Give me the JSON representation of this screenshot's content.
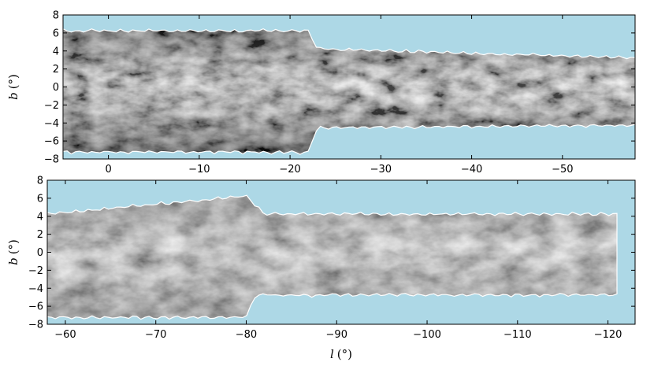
{
  "chart_data": [
    {
      "type": "heatmap",
      "panel": "top",
      "description_of_content": "grayscale sky survey mosaic of Galactic plane with hexagonal-tiled footprint edges",
      "background_color": "#add8e6",
      "colormap": "gray",
      "xlabel": "",
      "ylabel": "b (°)",
      "ylabel_var": "b",
      "ylabel_unit": "(°)",
      "xlim": [
        5,
        -58
      ],
      "ylim": [
        -8,
        8
      ],
      "xticks": [
        0,
        -10,
        -20,
        -30,
        -40,
        -50
      ],
      "xtick_labels": [
        "0",
        "−10",
        "−20",
        "−30",
        "−40",
        "−50"
      ],
      "yticks": [
        8,
        6,
        4,
        2,
        0,
        -2,
        -4,
        -6,
        -8
      ],
      "ytick_labels": [
        "8",
        "6",
        "4",
        "2",
        "0",
        "−2",
        "−4",
        "−6",
        "−8"
      ],
      "coverage": {
        "l_min": -58,
        "l_max": 5,
        "upper_b_segments": [
          [
            5,
            6.5
          ],
          [
            -22,
            6.5
          ],
          [
            -23,
            4.5
          ],
          [
            -58,
            3.5
          ]
        ],
        "lower_b_segments": [
          [
            5,
            -7.5
          ],
          [
            -22,
            -7.5
          ],
          [
            -23,
            -4.8
          ],
          [
            -58,
            -4.5
          ]
        ]
      },
      "grid": false
    },
    {
      "type": "heatmap",
      "panel": "bottom",
      "description_of_content": "grayscale sky survey mosaic of Galactic plane with hexagonal-tiled footprint edges",
      "background_color": "#add8e6",
      "colormap": "gray",
      "xlabel": "l (°)",
      "xlabel_var": "l",
      "xlabel_unit": "(°)",
      "ylabel": "b (°)",
      "ylabel_var": "b",
      "ylabel_unit": "(°)",
      "xlim": [
        -58,
        -123
      ],
      "ylim": [
        -8,
        8
      ],
      "xticks": [
        -60,
        -70,
        -80,
        -90,
        -100,
        -110,
        -120
      ],
      "xtick_labels": [
        "−60",
        "−70",
        "−80",
        "−90",
        "−100",
        "−110",
        "−120"
      ],
      "yticks": [
        8,
        6,
        4,
        2,
        0,
        -2,
        -4,
        -6,
        -8
      ],
      "ytick_labels": [
        "8",
        "6",
        "4",
        "2",
        "0",
        "−2",
        "−4",
        "−6",
        "−8"
      ],
      "coverage": {
        "l_min": -121,
        "l_max": -58,
        "upper_b_segments": [
          [
            -58,
            4.5
          ],
          [
            -80,
            6.5
          ],
          [
            -82,
            4.5
          ],
          [
            -121,
            4.5
          ]
        ],
        "lower_b_segments": [
          [
            -58,
            -7.5
          ],
          [
            -80,
            -7.5
          ],
          [
            -81,
            -5
          ],
          [
            -121,
            -5
          ]
        ]
      },
      "grid": false
    }
  ]
}
